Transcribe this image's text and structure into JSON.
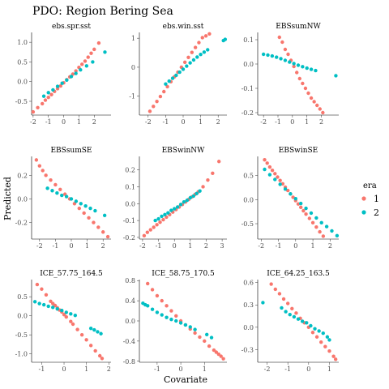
{
  "chart_data": {
    "type": "scatter",
    "title": "PDO: Region Bering Sea",
    "xlabel": "Covariate",
    "ylabel": "Predicted",
    "grid": false,
    "legend": {
      "title": "era",
      "placement": "right",
      "entries": [
        {
          "label": "1",
          "color": "#F8766D"
        },
        {
          "label": "2",
          "color": "#00BFC4"
        }
      ]
    },
    "panels": [
      {
        "name": "ebs.spr.sst",
        "xlim": [
          -2.1,
          3.1
        ],
        "ylim": [
          -0.85,
          1.25
        ],
        "xticks": [
          -2,
          -1,
          0,
          1,
          2
        ],
        "yticks": [
          -0.5,
          0.0,
          0.5,
          1.0
        ],
        "xticklabels": [
          "-2",
          "-1",
          "0",
          "1",
          "2"
        ],
        "yticklabels": [
          "-0.5",
          "0.0",
          "0.5",
          "1.0"
        ],
        "series": [
          {
            "name": "1",
            "x": [
              -2.0,
              -1.7,
              -1.4,
              -1.2,
              -1.0,
              -0.8,
              -0.6,
              -0.4,
              -0.2,
              0.0,
              0.2,
              0.4,
              0.6,
              0.8,
              1.0,
              1.2,
              1.4,
              1.6,
              1.8,
              2.0,
              2.3
            ],
            "y": [
              -0.77,
              -0.66,
              -0.56,
              -0.47,
              -0.4,
              -0.33,
              -0.25,
              -0.18,
              -0.11,
              -0.03,
              0.05,
              0.12,
              0.19,
              0.27,
              0.36,
              0.44,
              0.52,
              0.62,
              0.72,
              0.82,
              0.98
            ]
          },
          {
            "name": "2",
            "x": [
              -1.3,
              -1.0,
              -0.7,
              -0.4,
              -0.1,
              0.2,
              0.5,
              0.8,
              1.1,
              1.5,
              1.9,
              2.7
            ],
            "y": [
              -0.37,
              -0.28,
              -0.21,
              -0.12,
              -0.04,
              0.04,
              0.13,
              0.21,
              0.3,
              0.4,
              0.5,
              0.75
            ]
          }
        ]
      },
      {
        "name": "ebs.win.sst",
        "xlim": [
          -2.5,
          2.5
        ],
        "ylim": [
          -1.65,
          1.2
        ],
        "xticks": [
          -2,
          -1,
          0,
          1,
          2
        ],
        "yticks": [
          -1,
          0,
          1
        ],
        "xticklabels": [
          "-2",
          "-1",
          "0",
          "1",
          "2"
        ],
        "yticklabels": [
          "-1",
          "0",
          "1"
        ],
        "series": [
          {
            "name": "1",
            "x": [
              -1.9,
              -1.7,
              -1.5,
              -1.3,
              -1.1,
              -0.9,
              -0.7,
              -0.5,
              -0.3,
              -0.1,
              0.1,
              0.3,
              0.5,
              0.7,
              0.9,
              1.1,
              1.3,
              1.5
            ],
            "y": [
              -1.52,
              -1.35,
              -1.18,
              -1.01,
              -0.84,
              -0.67,
              -0.5,
              -0.33,
              -0.17,
              0.0,
              0.17,
              0.34,
              0.51,
              0.68,
              0.85,
              1.02,
              1.08,
              1.15
            ]
          },
          {
            "name": "2",
            "x": [
              -1.0,
              -0.8,
              -0.6,
              -0.4,
              -0.2,
              0.0,
              0.2,
              0.4,
              0.6,
              0.8,
              1.0,
              1.2,
              1.4,
              2.3,
              2.4
            ],
            "y": [
              -0.58,
              -0.48,
              -0.38,
              -0.28,
              -0.17,
              -0.07,
              0.04,
              0.15,
              0.25,
              0.35,
              0.44,
              0.52,
              0.6,
              0.92,
              0.96
            ]
          }
        ]
      },
      {
        "name": "EBSsumNW",
        "xlim": [
          -2.4,
          3.2
        ],
        "ylim": [
          -0.21,
          0.13
        ],
        "xticks": [
          -2,
          -1,
          0,
          1,
          2
        ],
        "yticks": [
          -0.2,
          -0.1,
          0.0,
          0.1
        ],
        "xticklabels": [
          "-2",
          "-1",
          "0",
          "1",
          "2"
        ],
        "yticklabels": [
          "-0.2",
          "-0.1",
          "0.0",
          "0.1"
        ],
        "series": [
          {
            "name": "1",
            "x": [
              -0.9,
              -0.7,
              -0.5,
              -0.3,
              -0.1,
              0.1,
              0.3,
              0.5,
              0.7,
              0.9,
              1.1,
              1.3,
              1.5,
              1.7,
              1.9,
              2.1
            ],
            "y": [
              0.11,
              0.09,
              0.06,
              0.04,
              0.015,
              -0.01,
              -0.035,
              -0.06,
              -0.08,
              -0.1,
              -0.12,
              -0.14,
              -0.155,
              -0.17,
              -0.185,
              -0.2
            ]
          },
          {
            "name": "2",
            "x": [
              -2.0,
              -1.7,
              -1.4,
              -1.1,
              -0.8,
              -0.5,
              -0.2,
              0.1,
              0.4,
              0.7,
              1.0,
              1.3,
              1.6,
              3.0
            ],
            "y": [
              0.04,
              0.037,
              0.033,
              0.028,
              0.022,
              0.015,
              0.008,
              0.002,
              -0.005,
              -0.011,
              -0.017,
              -0.022,
              -0.027,
              -0.048
            ]
          }
        ]
      },
      {
        "name": "EBSsumSE",
        "xlim": [
          -2.5,
          2.5
        ],
        "ylim": [
          -0.34,
          0.36
        ],
        "xticks": [
          -2,
          -1,
          0,
          1,
          2
        ],
        "yticks": [
          -0.2,
          0.0,
          0.2
        ],
        "xticklabels": [
          "-2",
          "-1",
          "0",
          "1",
          "2"
        ],
        "yticklabels": [
          "-0.2",
          "0.0",
          "0.2"
        ],
        "series": [
          {
            "name": "1",
            "x": [
              -2.2,
              -2.0,
              -1.8,
              -1.6,
              -1.3,
              -1.0,
              -0.7,
              -0.4,
              -0.1,
              0.2,
              0.5,
              0.8,
              1.1,
              1.4,
              1.7,
              2.0,
              2.3
            ],
            "y": [
              0.33,
              0.28,
              0.24,
              0.2,
              0.16,
              0.12,
              0.08,
              0.04,
              0.0,
              -0.04,
              -0.08,
              -0.12,
              -0.16,
              -0.2,
              -0.24,
              -0.28,
              -0.32
            ]
          },
          {
            "name": "2",
            "x": [
              -1.5,
              -1.2,
              -0.9,
              -0.6,
              -0.3,
              0.0,
              0.3,
              0.6,
              0.9,
              1.2,
              1.5,
              2.1
            ],
            "y": [
              0.09,
              0.07,
              0.05,
              0.03,
              0.02,
              0.0,
              -0.02,
              -0.04,
              -0.06,
              -0.08,
              -0.1,
              -0.14
            ]
          }
        ]
      },
      {
        "name": "EBSwinNW",
        "xlim": [
          -2.2,
          3.3
        ],
        "ylim": [
          -0.21,
          0.28
        ],
        "xticks": [
          -2,
          -1,
          0,
          1,
          2,
          3
        ],
        "yticks": [
          -0.2,
          -0.1,
          0.0,
          0.1,
          0.2
        ],
        "xticklabels": [
          "-2",
          "-1",
          "0",
          "1",
          "2",
          "3"
        ],
        "yticklabels": [
          "-0.2",
          "-0.1",
          "0.0",
          "0.1",
          "0.2"
        ],
        "series": [
          {
            "name": "1",
            "x": [
              -1.9,
              -1.7,
              -1.5,
              -1.3,
              -1.1,
              -0.9,
              -0.7,
              -0.5,
              -0.3,
              -0.1,
              0.1,
              0.3,
              0.5,
              0.7,
              0.9,
              1.1,
              1.3,
              1.5,
              1.8,
              2.1,
              2.4,
              2.8
            ],
            "y": [
              -0.19,
              -0.17,
              -0.155,
              -0.14,
              -0.125,
              -0.11,
              -0.095,
              -0.08,
              -0.065,
              -0.05,
              -0.035,
              -0.02,
              -0.005,
              0.01,
              0.025,
              0.04,
              0.055,
              0.07,
              0.1,
              0.14,
              0.18,
              0.25
            ]
          },
          {
            "name": "2",
            "x": [
              -1.2,
              -1.0,
              -0.8,
              -0.6,
              -0.4,
              -0.2,
              0.0,
              0.2,
              0.4,
              0.6,
              0.8,
              1.0,
              1.2,
              1.4,
              1.6
            ],
            "y": [
              -0.1,
              -0.09,
              -0.075,
              -0.065,
              -0.055,
              -0.04,
              -0.03,
              -0.02,
              -0.005,
              0.01,
              0.02,
              0.035,
              0.045,
              0.06,
              0.075
            ]
          }
        ]
      },
      {
        "name": "EBSwinSE",
        "xlim": [
          -2.2,
          2.5
        ],
        "ylim": [
          -0.82,
          0.9
        ],
        "xticks": [
          -2,
          -1,
          0,
          1,
          2
        ],
        "yticks": [
          -0.5,
          0.0,
          0.5
        ],
        "xticklabels": [
          "-2",
          "-1",
          "0",
          "1",
          "2"
        ],
        "yticklabels": [
          "-0.5",
          "0.0",
          "0.5"
        ],
        "series": [
          {
            "name": "1",
            "x": [
              -1.8,
              -1.65,
              -1.5,
              -1.35,
              -1.2,
              -1.05,
              -0.9,
              -0.75,
              -0.6,
              -0.45,
              -0.3,
              -0.15,
              0.0,
              0.15,
              0.3,
              0.45,
              0.6,
              0.8,
              1.0,
              1.2,
              1.4,
              1.6
            ],
            "y": [
              0.83,
              0.76,
              0.68,
              0.61,
              0.54,
              0.47,
              0.4,
              0.33,
              0.26,
              0.19,
              0.12,
              0.05,
              -0.02,
              -0.09,
              -0.16,
              -0.23,
              -0.3,
              -0.39,
              -0.48,
              -0.57,
              -0.67,
              -0.76
            ]
          },
          {
            "name": "2",
            "x": [
              -1.8,
              -1.5,
              -1.2,
              -0.9,
              -0.6,
              -0.3,
              0.0,
              0.3,
              0.6,
              0.9,
              1.2,
              1.5,
              1.8,
              2.1,
              2.4
            ],
            "y": [
              0.63,
              0.52,
              0.42,
              0.32,
              0.22,
              0.12,
              0.02,
              -0.08,
              -0.18,
              -0.28,
              -0.38,
              -0.48,
              -0.56,
              -0.65,
              -0.75
            ]
          }
        ]
      },
      {
        "name": "ICE_57.75_164.5",
        "xlim": [
          -1.45,
          2.1
        ],
        "ylim": [
          -1.22,
          0.95
        ],
        "xticks": [
          -1,
          0,
          1,
          2
        ],
        "yticks": [
          -1.0,
          -0.5,
          0.0,
          0.5
        ],
        "xticklabels": [
          "-1",
          "0",
          "1",
          "2"
        ],
        "yticklabels": [
          "-1.0",
          "-0.5",
          "0.0",
          "0.5"
        ],
        "series": [
          {
            "name": "1",
            "x": [
              -1.2,
              -1.0,
              -0.8,
              -0.6,
              -0.5,
              -0.4,
              -0.3,
              -0.2,
              -0.1,
              0.0,
              0.1,
              0.3,
              0.4,
              0.6,
              0.8,
              1.0,
              1.2,
              1.4,
              1.6,
              1.7
            ],
            "y": [
              0.82,
              0.7,
              0.55,
              0.38,
              0.32,
              0.27,
              0.21,
              0.15,
              0.1,
              0.03,
              -0.03,
              -0.15,
              -0.22,
              -0.36,
              -0.5,
              -0.63,
              -0.78,
              -0.92,
              -1.05,
              -1.12
            ]
          },
          {
            "name": "2",
            "x": [
              -1.3,
              -1.1,
              -0.9,
              -0.7,
              -0.5,
              -0.3,
              -0.1,
              0.1,
              0.3,
              0.5,
              1.2,
              1.35,
              1.5,
              1.65
            ],
            "y": [
              0.37,
              0.32,
              0.29,
              0.25,
              0.22,
              0.18,
              0.14,
              0.09,
              0.05,
              0.01,
              -0.33,
              -0.37,
              -0.42,
              -0.47
            ]
          }
        ]
      },
      {
        "name": "ICE_58.75_170.5",
        "xlim": [
          -1.75,
          1.95
        ],
        "ylim": [
          -0.82,
          0.82
        ],
        "xticks": [
          -1,
          0,
          1
        ],
        "yticks": [
          -0.8,
          -0.4,
          0.0,
          0.4,
          0.8
        ],
        "xticklabels": [
          "-1",
          "0",
          "1"
        ],
        "yticklabels": [
          "-0.8",
          "-0.4",
          "0.0",
          "0.4",
          "0.8"
        ],
        "series": [
          {
            "name": "1",
            "x": [
              -1.4,
              -1.2,
              -1.0,
              -0.8,
              -0.6,
              -0.4,
              -0.2,
              0.0,
              0.2,
              0.4,
              0.6,
              0.8,
              1.0,
              1.2,
              1.4,
              1.5,
              1.6,
              1.7,
              1.8
            ],
            "y": [
              0.74,
              0.62,
              0.5,
              0.4,
              0.3,
              0.2,
              0.1,
              0.0,
              -0.08,
              -0.16,
              -0.24,
              -0.32,
              -0.4,
              -0.5,
              -0.58,
              -0.62,
              -0.66,
              -0.7,
              -0.75
            ]
          },
          {
            "name": "2",
            "x": [
              -1.6,
              -1.5,
              -1.4,
              -1.2,
              -1.0,
              -0.8,
              -0.6,
              -0.4,
              -0.2,
              0.0,
              0.2,
              0.4,
              0.6,
              1.1,
              1.3
            ],
            "y": [
              0.35,
              0.32,
              0.3,
              0.23,
              0.17,
              0.12,
              0.07,
              0.03,
              0.0,
              -0.04,
              -0.08,
              -0.12,
              -0.17,
              -0.27,
              -0.33
            ]
          }
        ]
      },
      {
        "name": "ICE_64.25_163.5",
        "xlim": [
          -2.45,
          1.45
        ],
        "ylim": [
          -0.47,
          0.64
        ],
        "xticks": [
          -2,
          -1,
          0,
          1
        ],
        "yticks": [
          -0.3,
          0.0,
          0.3,
          0.6
        ],
        "xticklabels": [
          "-2",
          "-1",
          "0",
          "1"
        ],
        "yticklabels": [
          "-0.3",
          "0.0",
          "0.3",
          "0.6"
        ],
        "series": [
          {
            "name": "1",
            "x": [
              -1.8,
              -1.6,
              -1.4,
              -1.2,
              -1.0,
              -0.8,
              -0.6,
              -0.4,
              -0.2,
              0.0,
              0.2,
              0.4,
              0.6,
              0.8,
              1.0,
              1.2,
              1.3
            ],
            "y": [
              0.58,
              0.51,
              0.45,
              0.38,
              0.32,
              0.25,
              0.19,
              0.12,
              0.06,
              0.0,
              -0.07,
              -0.13,
              -0.2,
              -0.26,
              -0.32,
              -0.39,
              -0.43
            ]
          },
          {
            "name": "2",
            "x": [
              -2.2,
              -1.3,
              -1.1,
              -0.9,
              -0.7,
              -0.5,
              -0.3,
              -0.1,
              0.1,
              0.3,
              0.5,
              0.7,
              0.9,
              1.0
            ],
            "y": [
              0.33,
              0.26,
              0.21,
              0.17,
              0.14,
              0.11,
              0.08,
              0.06,
              0.02,
              -0.02,
              -0.05,
              -0.08,
              -0.13,
              -0.17
            ]
          }
        ]
      }
    ]
  }
}
